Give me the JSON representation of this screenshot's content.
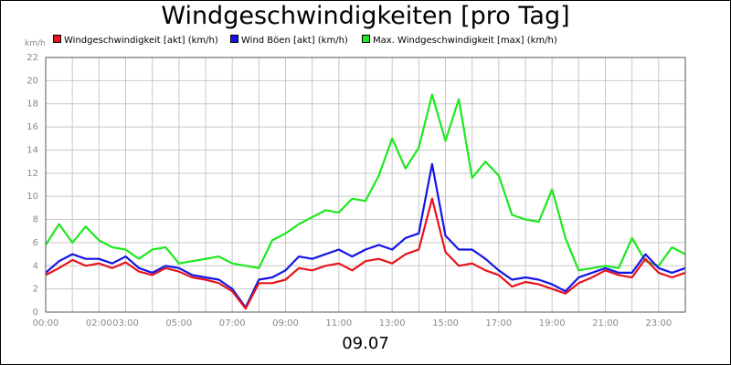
{
  "chart_data": {
    "type": "line",
    "title": "Windgeschwindigkeiten [pro Tag]",
    "y_unit_label": "km/h",
    "date_label": "09.07",
    "ylim": [
      0,
      22
    ],
    "y_ticks": [
      0,
      2,
      4,
      6,
      8,
      10,
      12,
      14,
      16,
      18,
      20,
      22
    ],
    "xlim": [
      0,
      24
    ],
    "x_tick_labels": [
      "00:00",
      "02:00",
      "03:00",
      "05:00",
      "07:00",
      "09:00",
      "11:00",
      "13:00",
      "15:00",
      "17:00",
      "19:00",
      "21:00",
      "23:00"
    ],
    "x_tick_hours": [
      0,
      2,
      3,
      5,
      7,
      9,
      11,
      13,
      15,
      17,
      19,
      21,
      23
    ],
    "grid": true,
    "legend_position": "top",
    "x_hours": [
      0,
      0.5,
      1,
      1.5,
      2,
      2.5,
      3,
      3.5,
      4,
      4.5,
      5,
      5.5,
      6,
      6.5,
      7,
      7.5,
      8,
      8.5,
      9,
      9.5,
      10,
      10.5,
      11,
      11.5,
      12,
      12.5,
      13,
      13.5,
      14,
      14.5,
      15,
      15.5,
      16,
      16.5,
      17,
      17.5,
      18,
      18.5,
      19,
      19.5,
      20,
      20.5,
      21,
      21.5,
      22,
      22.5,
      23,
      23.5,
      24
    ],
    "series": [
      {
        "name": "Windgeschwindigkeit [akt] (km/h)",
        "color": "#e8141c",
        "values": [
          3.2,
          3.8,
          4.5,
          4.0,
          4.2,
          3.8,
          4.3,
          3.5,
          3.2,
          3.8,
          3.5,
          3.0,
          2.8,
          2.5,
          1.8,
          0.3,
          2.5,
          2.5,
          2.8,
          3.8,
          3.6,
          4.0,
          4.2,
          3.6,
          4.4,
          4.6,
          4.2,
          5.0,
          5.4,
          9.8,
          5.2,
          4.0,
          4.2,
          3.6,
          3.2,
          2.2,
          2.6,
          2.4,
          2.0,
          1.6,
          2.5,
          3.0,
          3.6,
          3.2,
          3.0,
          4.6,
          3.4,
          3.0,
          3.4
        ]
      },
      {
        "name": "Wind Böen [akt] (km/h)",
        "color": "#1414e8",
        "values": [
          3.4,
          4.4,
          5.0,
          4.6,
          4.6,
          4.2,
          4.8,
          3.8,
          3.4,
          4.0,
          3.8,
          3.2,
          3.0,
          2.8,
          2.0,
          0.4,
          2.8,
          3.0,
          3.6,
          4.8,
          4.6,
          5.0,
          5.4,
          4.8,
          5.4,
          5.8,
          5.4,
          6.4,
          6.8,
          12.8,
          6.6,
          5.4,
          5.4,
          4.6,
          3.6,
          2.8,
          3.0,
          2.8,
          2.4,
          1.8,
          3.0,
          3.4,
          3.8,
          3.4,
          3.4,
          5.0,
          3.8,
          3.4,
          3.8
        ]
      },
      {
        "name": "Max. Windgeschwindigkeit [max] (km/h)",
        "color": "#1ee81e",
        "values": [
          5.8,
          7.6,
          6.0,
          7.4,
          6.2,
          5.6,
          5.4,
          4.6,
          5.4,
          5.6,
          4.2,
          4.4,
          4.6,
          4.8,
          4.2,
          4.0,
          3.8,
          6.2,
          6.8,
          7.6,
          8.2,
          8.8,
          8.6,
          9.8,
          9.6,
          11.8,
          15.0,
          12.4,
          14.2,
          18.8,
          14.8,
          18.4,
          11.6,
          13.0,
          11.8,
          8.4,
          8.0,
          7.8,
          10.6,
          6.4,
          3.6,
          3.8,
          4.0,
          3.8,
          6.4,
          4.4,
          4.0,
          5.6,
          5.0
        ]
      }
    ]
  }
}
